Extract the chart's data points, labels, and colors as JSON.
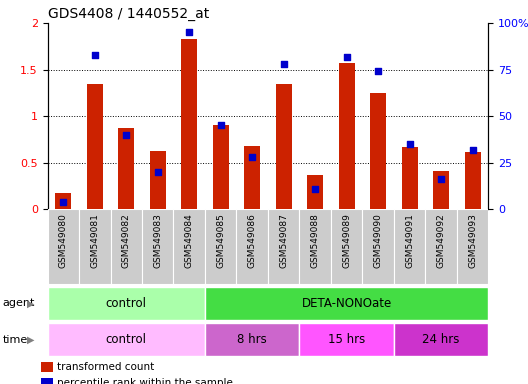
{
  "title": "GDS4408 / 1440552_at",
  "samples": [
    "GSM549080",
    "GSM549081",
    "GSM549082",
    "GSM549083",
    "GSM549084",
    "GSM549085",
    "GSM549086",
    "GSM549087",
    "GSM549088",
    "GSM549089",
    "GSM549090",
    "GSM549091",
    "GSM549092",
    "GSM549093"
  ],
  "red_values": [
    0.18,
    1.34,
    0.87,
    0.63,
    1.83,
    0.9,
    0.68,
    1.35,
    0.37,
    1.57,
    1.25,
    0.67,
    0.41,
    0.62
  ],
  "blue_pct": [
    4,
    83,
    40,
    20,
    95,
    45,
    28,
    78,
    11,
    82,
    74,
    35,
    16,
    32
  ],
  "ylim_left": [
    0,
    2
  ],
  "ylim_right": [
    0,
    100
  ],
  "yticks_left": [
    0,
    0.5,
    1.0,
    1.5,
    2.0
  ],
  "yticks_right": [
    0,
    25,
    50,
    75,
    100
  ],
  "ytick_labels_left": [
    "0",
    "0.5",
    "1",
    "1.5",
    "2"
  ],
  "ytick_labels_right": [
    "0",
    "25",
    "50",
    "75",
    "100%"
  ],
  "agent_groups": [
    {
      "label": "control",
      "start": 0,
      "end": 5,
      "color": "#AAFFAA"
    },
    {
      "label": "DETA-NONOate",
      "start": 5,
      "end": 14,
      "color": "#44DD44"
    }
  ],
  "time_groups": [
    {
      "label": "control",
      "start": 0,
      "end": 5,
      "color": "#FFBBFF"
    },
    {
      "label": "8 hrs",
      "start": 5,
      "end": 8,
      "color": "#DD66DD"
    },
    {
      "label": "15 hrs",
      "start": 8,
      "end": 11,
      "color": "#FF55FF"
    },
    {
      "label": "24 hrs",
      "start": 11,
      "end": 14,
      "color": "#CC44CC"
    }
  ],
  "bar_color": "#CC2200",
  "dot_color": "#0000CC",
  "xtick_bg": "#CCCCCC",
  "legend_items": [
    {
      "label": "transformed count",
      "color": "#CC2200"
    },
    {
      "label": "percentile rank within the sample",
      "color": "#0000CC"
    }
  ],
  "plot_bg": "#FFFFFF"
}
